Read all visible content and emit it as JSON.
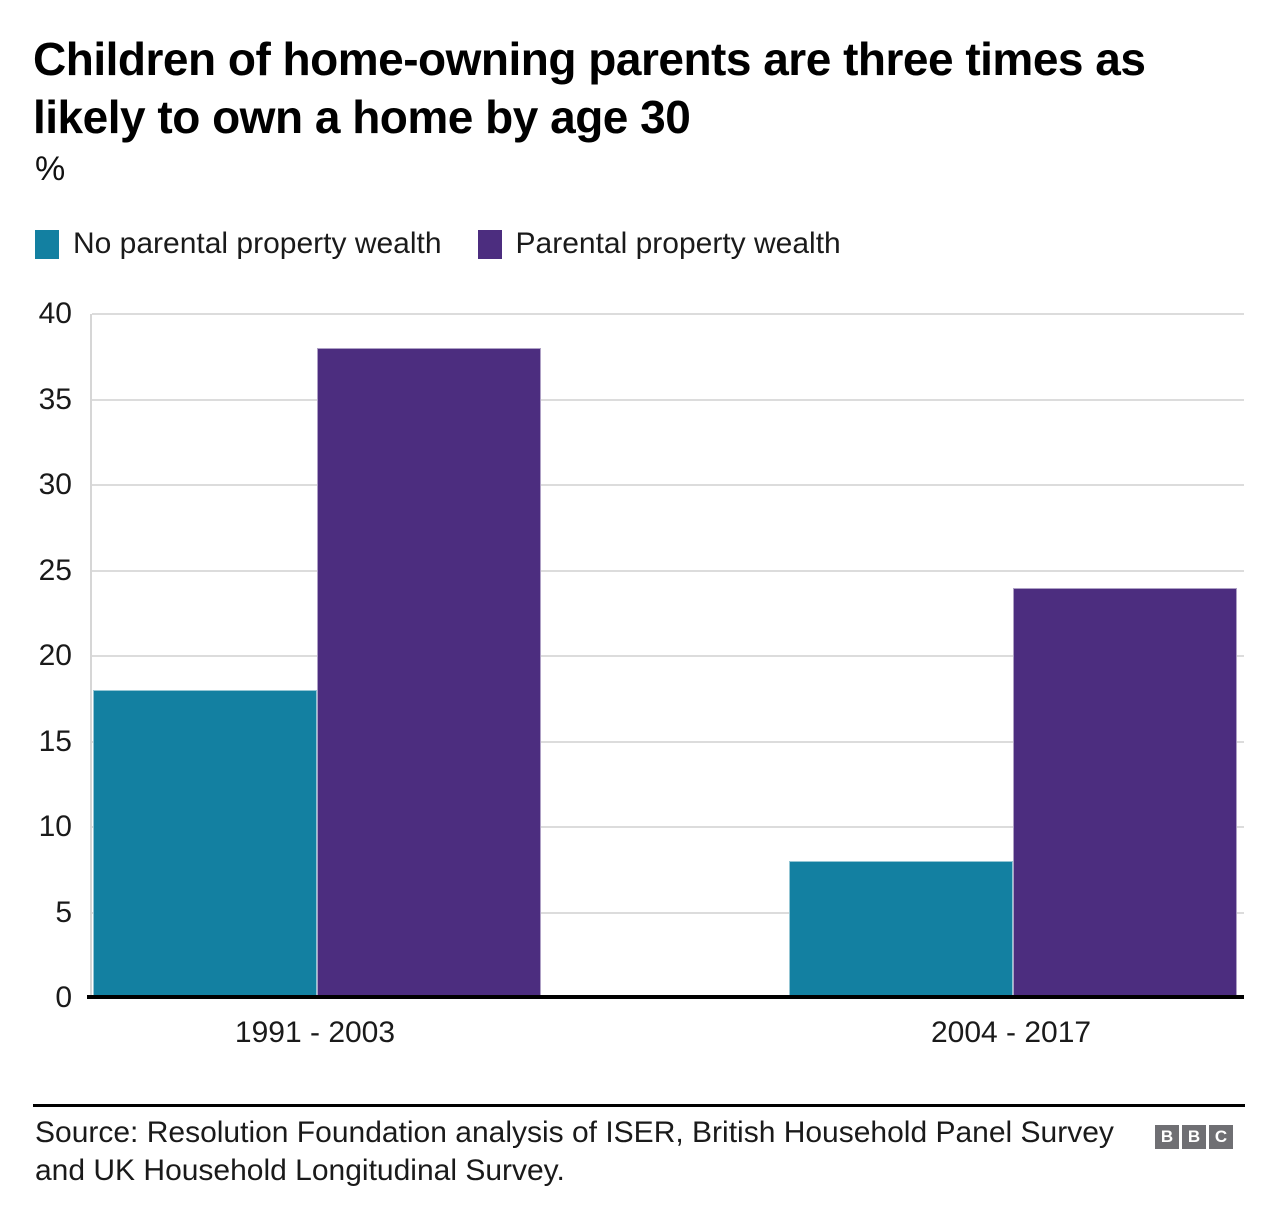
{
  "header": {
    "title": "Children of home-owning parents are three times as likely to own a home by age 30",
    "unit_label": "%"
  },
  "chart_data": {
    "type": "bar",
    "title": "Children of home-owning parents are three times as likely to own a home by age 30",
    "xlabel": "",
    "ylabel": "%",
    "categories": [
      "1991 - 2003",
      "2004 - 2017"
    ],
    "series": [
      {
        "name": "No parental property wealth",
        "color": "#1380A1",
        "values": [
          18,
          8
        ]
      },
      {
        "name": "Parental property wealth",
        "color": "#4C2D7F",
        "values": [
          38,
          24
        ]
      }
    ],
    "ylim": [
      0,
      40
    ],
    "ytick_step": 5,
    "grid": "horizontal-major-only",
    "legend_position": "top-left",
    "axis_line_color": "#000000",
    "gridline_color": "#dcdcdc"
  },
  "footer": {
    "source": "Source: Resolution Foundation analysis of ISER, British Household Panel Survey and UK Household Longitudinal Survey.",
    "logo_letters": [
      "B",
      "B",
      "C"
    ]
  }
}
